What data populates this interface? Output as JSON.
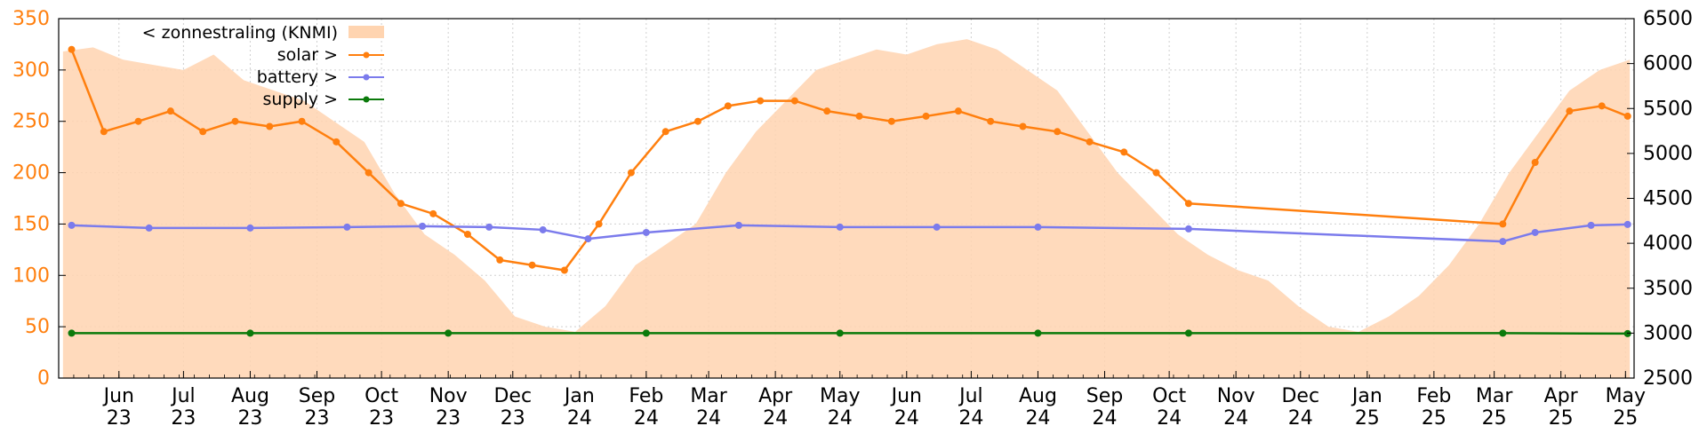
{
  "chart_data": {
    "type": "line",
    "grid": true,
    "legend_placement": "top-left",
    "y_left": {
      "range": [
        0,
        350
      ],
      "ticks": [
        "0",
        "50",
        "100",
        "150",
        "200",
        "250",
        "300",
        "350"
      ],
      "color": "#ff7f0e"
    },
    "y_right": {
      "range": [
        2500,
        6500
      ],
      "ticks": [
        "2500",
        "3000",
        "3500",
        "4000",
        "4500",
        "5000",
        "5500",
        "6000",
        "6500"
      ],
      "color": "#000000"
    },
    "x_ticks": [
      {
        "month": "Jun",
        "year": "23"
      },
      {
        "month": "Jul",
        "year": "23"
      },
      {
        "month": "Aug",
        "year": "23"
      },
      {
        "month": "Sep",
        "year": "23"
      },
      {
        "month": "Oct",
        "year": "23"
      },
      {
        "month": "Nov",
        "year": "23"
      },
      {
        "month": "Dec",
        "year": "23"
      },
      {
        "month": "Jan",
        "year": "24"
      },
      {
        "month": "Feb",
        "year": "24"
      },
      {
        "month": "Mar",
        "year": "24"
      },
      {
        "month": "Apr",
        "year": "24"
      },
      {
        "month": "May",
        "year": "24"
      },
      {
        "month": "Jun",
        "year": "24"
      },
      {
        "month": "Jul",
        "year": "24"
      },
      {
        "month": "Aug",
        "year": "24"
      },
      {
        "month": "Sep",
        "year": "24"
      },
      {
        "month": "Oct",
        "year": "24"
      },
      {
        "month": "Nov",
        "year": "24"
      },
      {
        "month": "Dec",
        "year": "24"
      },
      {
        "month": "Jan",
        "year": "25"
      },
      {
        "month": "Feb",
        "year": "25"
      },
      {
        "month": "Mar",
        "year": "25"
      },
      {
        "month": "Apr",
        "year": "25"
      },
      {
        "month": "May",
        "year": "25"
      }
    ],
    "legend": [
      {
        "label": "< zonnestraling (KNMI)",
        "color": "#ffd4b0"
      },
      {
        "label": "solar >",
        "color": "#ff7f0e"
      },
      {
        "label": "battery >",
        "color": "#7b7bec"
      },
      {
        "label": "supply >",
        "color": "#0b7a0b"
      }
    ],
    "series": [
      {
        "name": "zonnestraling (KNMI)",
        "axis": "left",
        "color": "#ffd4b0",
        "style": "area",
        "x": [
          "2023-05-06",
          "2023-05-20",
          "2023-06-03",
          "2023-06-17",
          "2023-07-01",
          "2023-07-15",
          "2023-07-29",
          "2023-08-12",
          "2023-08-26",
          "2023-09-09",
          "2023-09-23",
          "2023-10-07",
          "2023-10-21",
          "2023-11-04",
          "2023-11-18",
          "2023-12-02",
          "2023-12-16",
          "2023-12-30",
          "2024-01-13",
          "2024-01-27",
          "2024-02-10",
          "2024-02-24",
          "2024-03-09",
          "2024-03-23",
          "2024-04-06",
          "2024-04-20",
          "2024-05-04",
          "2024-05-18",
          "2024-06-01",
          "2024-06-15",
          "2024-06-29",
          "2024-07-13",
          "2024-07-27",
          "2024-08-10",
          "2024-08-24",
          "2024-09-07",
          "2024-09-21",
          "2024-10-05",
          "2024-10-19",
          "2024-11-02",
          "2024-11-16",
          "2024-11-30",
          "2024-12-14",
          "2024-12-28",
          "2025-01-11",
          "2025-01-25",
          "2025-02-08",
          "2025-02-22",
          "2025-03-08",
          "2025-03-22",
          "2025-04-05",
          "2025-04-19",
          "2025-05-03"
        ],
        "values": [
          318,
          322,
          310,
          305,
          300,
          315,
          290,
          280,
          270,
          250,
          230,
          180,
          140,
          120,
          95,
          60,
          50,
          45,
          70,
          110,
          130,
          150,
          200,
          240,
          270,
          300,
          310,
          320,
          315,
          325,
          330,
          320,
          300,
          280,
          240,
          200,
          170,
          140,
          120,
          105,
          95,
          70,
          50,
          45,
          60,
          80,
          110,
          150,
          200,
          240,
          280,
          300,
          310
        ]
      },
      {
        "name": "solar",
        "axis": "left",
        "color": "#ff7f0e",
        "style": "line",
        "x": [
          "2023-05-10",
          "2023-05-25",
          "2023-06-10",
          "2023-06-25",
          "2023-07-10",
          "2023-07-25",
          "2023-08-10",
          "2023-08-25",
          "2023-09-10",
          "2023-09-25",
          "2023-10-10",
          "2023-10-25",
          "2023-11-10",
          "2023-11-25",
          "2023-12-10",
          "2023-12-25",
          "2024-01-10",
          "2024-01-25",
          "2024-02-10",
          "2024-02-25",
          "2024-03-10",
          "2024-03-25",
          "2024-04-10",
          "2024-04-25",
          "2024-05-10",
          "2024-05-25",
          "2024-06-10",
          "2024-06-25",
          "2024-07-10",
          "2024-07-25",
          "2024-08-10",
          "2024-08-25",
          "2024-09-10",
          "2024-09-25",
          "2024-10-10",
          "2025-03-05",
          "2025-03-20",
          "2025-04-05",
          "2025-04-20",
          "2025-05-02"
        ],
        "values": [
          320,
          240,
          250,
          260,
          240,
          250,
          245,
          250,
          230,
          200,
          170,
          160,
          140,
          115,
          110,
          105,
          150,
          200,
          240,
          250,
          265,
          270,
          270,
          260,
          255,
          250,
          255,
          260,
          250,
          245,
          240,
          230,
          220,
          200,
          170,
          150,
          210,
          260,
          265,
          255
        ]
      },
      {
        "name": "battery",
        "axis": "right",
        "color": "#7b7bec",
        "style": "line",
        "x": [
          "2023-05-10",
          "2023-06-15",
          "2023-08-01",
          "2023-09-15",
          "2023-10-20",
          "2023-11-20",
          "2023-12-15",
          "2024-01-05",
          "2024-02-01",
          "2024-03-15",
          "2024-05-01",
          "2024-06-15",
          "2024-08-01",
          "2024-10-10",
          "2025-03-05",
          "2025-03-20",
          "2025-04-15",
          "2025-05-02"
        ],
        "values": [
          4200,
          4170,
          4170,
          4180,
          4190,
          4180,
          4150,
          4050,
          4120,
          4200,
          4180,
          4180,
          4180,
          4160,
          4020,
          4120,
          4200,
          4210
        ]
      },
      {
        "name": "supply",
        "axis": "right",
        "color": "#0b7a0b",
        "style": "line",
        "x": [
          "2023-05-10",
          "2023-08-01",
          "2023-11-01",
          "2024-02-01",
          "2024-05-01",
          "2024-08-01",
          "2024-10-10",
          "2025-03-05",
          "2025-05-02"
        ],
        "values": [
          3000,
          3000,
          3000,
          3000,
          3000,
          3000,
          3000,
          3000,
          2995
        ]
      }
    ]
  }
}
